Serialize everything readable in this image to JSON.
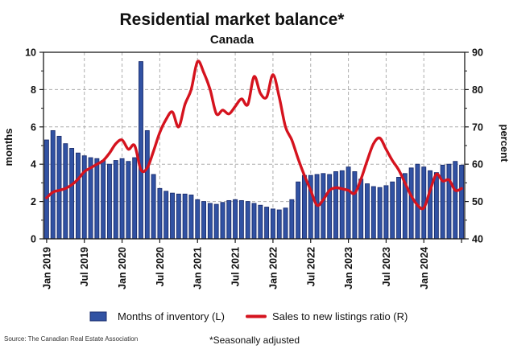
{
  "title": "Residential market balance*",
  "subtitle": "Canada",
  "source": "Source: The Canadian Real Estate Association",
  "footnote": "*Seasonally adjusted",
  "chart_data": {
    "type": "combo",
    "months_start": "Jan 2019",
    "months_end": "Jul 2024",
    "n_months": 67,
    "x_ticks": [
      "Jan 2019",
      "Jul 2019",
      "Jan 2020",
      "Jul 2020",
      "Jan 2021",
      "Jul 2021",
      "Jan 2022",
      "Jul 2022",
      "Jan 2023",
      "Jul 2023",
      "Jan 2024"
    ],
    "x_tick_step_months": 6,
    "grid": "dashed",
    "legend_position": "bottom",
    "left_axis": {
      "label": "months",
      "min": 0,
      "max": 10,
      "ticks": [
        0,
        2,
        4,
        6,
        8,
        10
      ],
      "minor_ticks": [
        1,
        3,
        5,
        7,
        9
      ]
    },
    "right_axis": {
      "label": "percent",
      "min": 40,
      "max": 90,
      "ticks": [
        40,
        50,
        60,
        70,
        80,
        90
      ],
      "minor_ticks": [
        45,
        55,
        65,
        75,
        85
      ]
    },
    "series": [
      {
        "name": "Months of inventory (L)",
        "type": "bar",
        "axis": "left",
        "color": "#3152a3",
        "edge_color": "#1b2d6e",
        "values": [
          5.3,
          5.8,
          5.5,
          5.1,
          4.85,
          4.6,
          4.45,
          4.35,
          4.3,
          4.2,
          4.0,
          4.2,
          4.3,
          4.15,
          4.35,
          9.5,
          5.8,
          3.45,
          2.7,
          2.55,
          2.45,
          2.4,
          2.4,
          2.35,
          2.1,
          2.0,
          1.9,
          1.85,
          1.95,
          2.05,
          2.1,
          2.05,
          2.0,
          1.9,
          1.8,
          1.7,
          1.6,
          1.55,
          1.65,
          2.1,
          3.05,
          3.4,
          3.4,
          3.45,
          3.5,
          3.45,
          3.6,
          3.65,
          3.85,
          3.6,
          3.2,
          2.95,
          2.8,
          2.75,
          2.85,
          3.05,
          3.3,
          3.5,
          3.8,
          4.0,
          3.85,
          3.65,
          3.55,
          3.95,
          4.0,
          4.15,
          3.95
        ]
      },
      {
        "name": "Sales to new listings ratio (R)",
        "type": "line",
        "axis": "right",
        "color": "#d5131e",
        "values": [
          51,
          52.5,
          53,
          53.5,
          54.5,
          56,
          58,
          59,
          60,
          61,
          63,
          65.5,
          66.5,
          64,
          65,
          58.5,
          59,
          63.5,
          68.5,
          72,
          74,
          70,
          76,
          80,
          87.5,
          84.5,
          80,
          73.5,
          74.5,
          73.5,
          75.5,
          77.5,
          76,
          83.5,
          79,
          78,
          84,
          78,
          70,
          66.5,
          61.5,
          57,
          53,
          49,
          50.5,
          53,
          53.7,
          53.4,
          53,
          52.2,
          56,
          61,
          65.5,
          67,
          64,
          61,
          58.5,
          55,
          51.5,
          49,
          48.3,
          53,
          57.3,
          55.5,
          55.8,
          53,
          53.5
        ]
      }
    ]
  }
}
